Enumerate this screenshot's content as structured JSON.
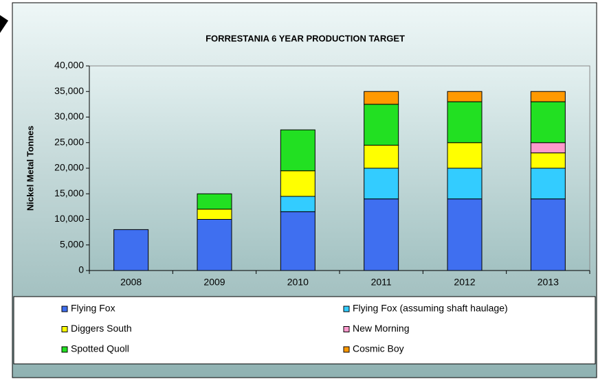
{
  "chart_data": {
    "type": "stacked-bar",
    "title": "FORRESTANIA 6 YEAR PRODUCTION TARGET",
    "y_label": "Nickel Metal Tonnes",
    "categories": [
      "2008",
      "2009",
      "2010",
      "2011",
      "2012",
      "2013"
    ],
    "series": [
      {
        "name": "Flying Fox",
        "color": "#3f6ff0",
        "values": [
          8000,
          10000,
          11500,
          14000,
          14000,
          14000
        ]
      },
      {
        "name": "Flying Fox (assuming shaft haulage)",
        "color": "#33ccff",
        "values": [
          null,
          null,
          3000,
          6000,
          6000,
          6000
        ]
      },
      {
        "name": "Diggers South",
        "color": "#ffff00",
        "values": [
          null,
          2000,
          5000,
          4500,
          5000,
          3000
        ]
      },
      {
        "name": "New Morning",
        "color": "#ff99cc",
        "values": [
          null,
          null,
          null,
          null,
          null,
          2000
        ]
      },
      {
        "name": "Spotted Quoll",
        "color": "#22e022",
        "values": [
          null,
          3000,
          8000,
          8000,
          8000,
          8000
        ]
      },
      {
        "name": "Cosmic Boy",
        "color": "#ff9900",
        "values": [
          null,
          null,
          null,
          2500,
          2000,
          2000
        ]
      }
    ],
    "ylim": [
      0,
      40000
    ],
    "yticks": [
      0,
      {
        "value": 5000,
        "label": "5,000"
      },
      {
        "value": 10000,
        "label": "10,000"
      },
      {
        "value": 15000,
        "label": "15,000"
      },
      {
        "value": 20000,
        "label": "20,000"
      },
      {
        "value": 25000,
        "label": "25,000"
      },
      {
        "value": 30000,
        "label": "30,000"
      },
      {
        "value": 35000,
        "label": "35,000"
      },
      {
        "value": 40000,
        "label": "40,000"
      }
    ],
    "grid": false,
    "legend": "bottom"
  }
}
